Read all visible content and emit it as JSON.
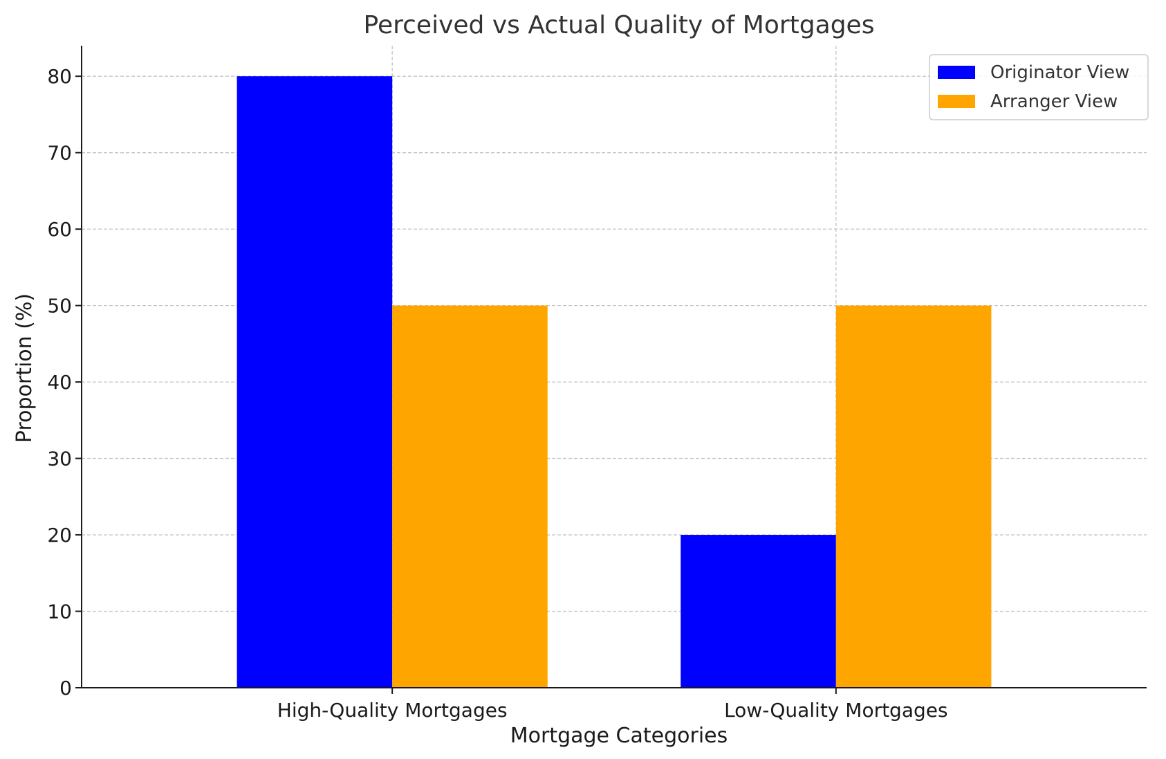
{
  "chart_data": {
    "type": "bar",
    "title": "Perceived vs Actual Quality of Mortgages",
    "xlabel": "Mortgage Categories",
    "ylabel": "Proportion (%)",
    "categories": [
      "High-Quality Mortgages",
      "Low-Quality Mortgages"
    ],
    "series": [
      {
        "name": "Originator View",
        "values": [
          80,
          20
        ],
        "color": "#0000ff"
      },
      {
        "name": "Arranger View",
        "values": [
          50,
          50
        ],
        "color": "#ffa500"
      }
    ],
    "ylim": [
      0,
      84
    ],
    "yticks": [
      0,
      10,
      20,
      30,
      40,
      50,
      60,
      70,
      80
    ],
    "grid": true,
    "legend": "top-right"
  }
}
